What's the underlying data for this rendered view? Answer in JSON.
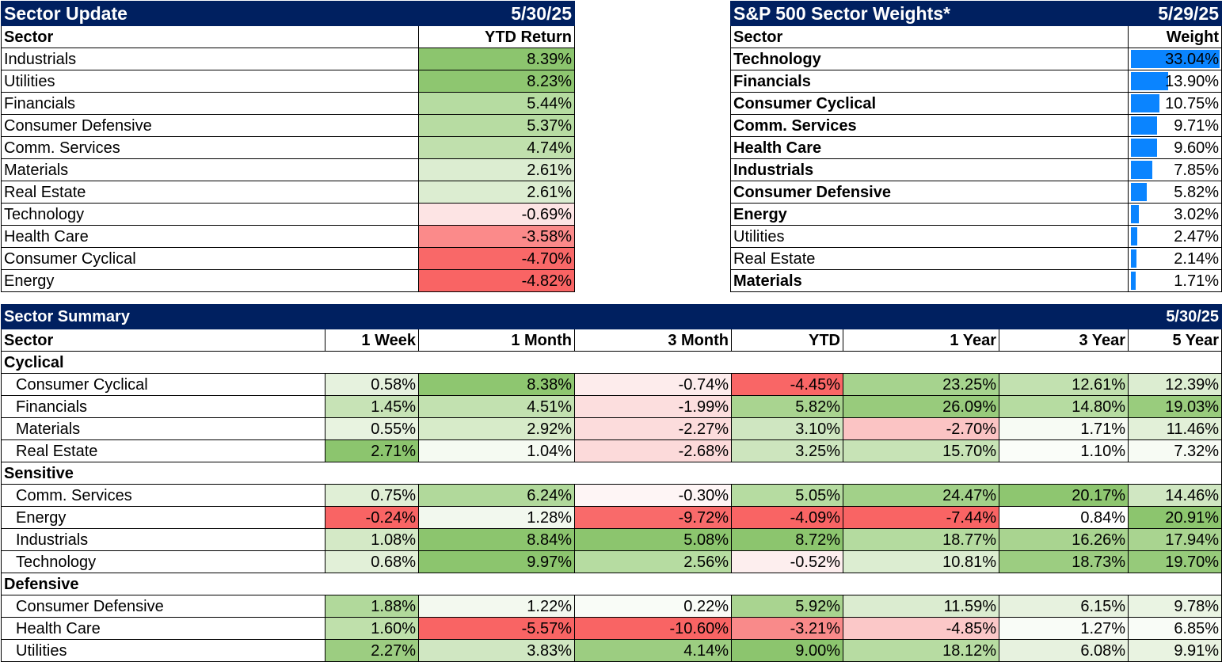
{
  "sector_update": {
    "title": "Sector Update",
    "date": "5/30/25",
    "col_sector": "Sector",
    "col_return": "YTD Return",
    "rows": [
      {
        "sector": "Industrials",
        "value": "8.39%",
        "color": "#8cc56e"
      },
      {
        "sector": "Utilities",
        "value": "8.23%",
        "color": "#8ec670"
      },
      {
        "sector": "Financials",
        "value": "5.44%",
        "color": "#b6dca1"
      },
      {
        "sector": "Consumer Defensive",
        "value": "5.37%",
        "color": "#b7dca2"
      },
      {
        "sector": "Comm. Services",
        "value": "4.74%",
        "color": "#c0e0ad"
      },
      {
        "sector": "Materials",
        "value": "2.61%",
        "color": "#dcedd1"
      },
      {
        "sector": "Real Estate",
        "value": "2.61%",
        "color": "#dcedd1"
      },
      {
        "sector": "Technology",
        "value": "-0.69%",
        "color": "#fde4e4"
      },
      {
        "sector": "Health Care",
        "value": "-3.58%",
        "color": "#fb8a8a"
      },
      {
        "sector": "Consumer Cyclical",
        "value": "-4.70%",
        "color": "#f96868"
      },
      {
        "sector": "Energy",
        "value": "-4.82%",
        "color": "#f96464"
      }
    ]
  },
  "weights": {
    "title": "S&P 500 Sector Weights*",
    "date": "5/29/25",
    "col_sector": "Sector",
    "col_weight": "Weight",
    "rows": [
      {
        "sector": "Technology",
        "value": "33.04%",
        "weight": 33.04,
        "bold": true
      },
      {
        "sector": "Financials",
        "value": "13.90%",
        "weight": 13.9,
        "bold": true
      },
      {
        "sector": "Consumer Cyclical",
        "value": "10.75%",
        "weight": 10.75,
        "bold": true
      },
      {
        "sector": "Comm. Services",
        "value": "9.71%",
        "weight": 9.71,
        "bold": true
      },
      {
        "sector": "Health Care",
        "value": "9.60%",
        "weight": 9.6,
        "bold": true
      },
      {
        "sector": "Industrials",
        "value": "7.85%",
        "weight": 7.85,
        "bold": true
      },
      {
        "sector": "Consumer Defensive",
        "value": "5.82%",
        "weight": 5.82,
        "bold": true
      },
      {
        "sector": "Energy",
        "value": "3.02%",
        "weight": 3.02,
        "bold": true
      },
      {
        "sector": "Utilities",
        "value": "2.47%",
        "weight": 2.47,
        "bold": false
      },
      {
        "sector": "Real Estate",
        "value": "2.14%",
        "weight": 2.14,
        "bold": false
      },
      {
        "sector": "Materials",
        "value": "1.71%",
        "weight": 1.71,
        "bold": true
      }
    ],
    "bar_color": "#0a84ff"
  },
  "summary": {
    "title": "Sector Summary",
    "date": "5/30/25",
    "columns": [
      "Sector",
      "1 Week",
      "1 Month",
      "3 Month",
      "YTD",
      "1 Year",
      "3 Year",
      "5 Year"
    ],
    "groups": [
      {
        "name": "Cyclical",
        "rows": [
          {
            "sector": "Consumer Cyclical",
            "cells": [
              {
                "v": "0.58%",
                "c": "#e6f2de"
              },
              {
                "v": "8.38%",
                "c": "#8ec670"
              },
              {
                "v": "-0.74%",
                "c": "#fdecec"
              },
              {
                "v": "-4.45%",
                "c": "#f96666"
              },
              {
                "v": "23.25%",
                "c": "#a6d38e"
              },
              {
                "v": "12.61%",
                "c": "#c2e1b0"
              },
              {
                "v": "12.39%",
                "c": "#dcedd1"
              }
            ]
          },
          {
            "sector": "Financials",
            "cells": [
              {
                "v": "1.45%",
                "c": "#c7e3b6"
              },
              {
                "v": "4.51%",
                "c": "#c2e1b0"
              },
              {
                "v": "-1.99%",
                "c": "#fcdede"
              },
              {
                "v": "5.82%",
                "c": "#a9d490"
              },
              {
                "v": "26.09%",
                "c": "#98cb7c"
              },
              {
                "v": "14.80%",
                "c": "#b6dca1"
              },
              {
                "v": "19.03%",
                "c": "#99cc7d"
              }
            ]
          },
          {
            "sector": "Materials",
            "cells": [
              {
                "v": "0.55%",
                "c": "#e8f3e0"
              },
              {
                "v": "2.92%",
                "c": "#d7ebc9"
              },
              {
                "v": "-2.27%",
                "c": "#fcdcdc"
              },
              {
                "v": "3.10%",
                "c": "#cfe6c1"
              },
              {
                "v": "-2.70%",
                "c": "#fbc4c4"
              },
              {
                "v": "1.71%",
                "c": "#f7fbf4"
              },
              {
                "v": "11.46%",
                "c": "#e2f0d8"
              }
            ]
          },
          {
            "sector": "Real Estate",
            "cells": [
              {
                "v": "2.71%",
                "c": "#8cc56e"
              },
              {
                "v": "1.04%",
                "c": "#f5faf2"
              },
              {
                "v": "-2.68%",
                "c": "#fcdada"
              },
              {
                "v": "3.25%",
                "c": "#cde5be"
              },
              {
                "v": "15.70%",
                "c": "#c7e3b6"
              },
              {
                "v": "1.10%",
                "c": "#fafdf9"
              },
              {
                "v": "7.32%",
                "c": "#f7fbf4"
              }
            ]
          }
        ]
      },
      {
        "name": "Sensitive",
        "rows": [
          {
            "sector": "Comm. Services",
            "cells": [
              {
                "v": "0.75%",
                "c": "#e0efd6"
              },
              {
                "v": "6.24%",
                "c": "#b1d99b"
              },
              {
                "v": "-0.30%",
                "c": "#fef5f5"
              },
              {
                "v": "5.05%",
                "c": "#b6dca1"
              },
              {
                "v": "24.47%",
                "c": "#a2d189"
              },
              {
                "v": "20.17%",
                "c": "#8ec670"
              },
              {
                "v": "14.46%",
                "c": "#d0e7c2"
              }
            ]
          },
          {
            "sector": "Energy",
            "cells": [
              {
                "v": "-0.24%",
                "c": "#f96464"
              },
              {
                "v": "1.28%",
                "c": "#f2f8ee"
              },
              {
                "v": "-9.72%",
                "c": "#f96a6a"
              },
              {
                "v": "-4.09%",
                "c": "#f96464"
              },
              {
                "v": "-7.44%",
                "c": "#f96464"
              },
              {
                "v": "0.84%",
                "c": "#ffffff"
              },
              {
                "v": "20.91%",
                "c": "#8cc56e"
              }
            ]
          },
          {
            "sector": "Industrials",
            "cells": [
              {
                "v": "1.08%",
                "c": "#d4e9c6"
              },
              {
                "v": "8.84%",
                "c": "#8cc56e"
              },
              {
                "v": "5.08%",
                "c": "#8cc56e"
              },
              {
                "v": "8.72%",
                "c": "#8cc56e"
              },
              {
                "v": "18.77%",
                "c": "#b4db9f"
              },
              {
                "v": "16.26%",
                "c": "#a9d490"
              },
              {
                "v": "17.94%",
                "c": "#a9d490"
              }
            ]
          },
          {
            "sector": "Technology",
            "cells": [
              {
                "v": "0.68%",
                "c": "#e2f0d8"
              },
              {
                "v": "9.97%",
                "c": "#8cc56e"
              },
              {
                "v": "2.56%",
                "c": "#b6dca1"
              },
              {
                "v": "-0.52%",
                "c": "#fdeeee"
              },
              {
                "v": "10.81%",
                "c": "#dcedd1"
              },
              {
                "v": "18.73%",
                "c": "#9ccd81"
              },
              {
                "v": "19.70%",
                "c": "#96ca7a"
              }
            ]
          }
        ]
      },
      {
        "name": "Defensive",
        "rows": [
          {
            "sector": "Consumer Defensive",
            "cells": [
              {
                "v": "1.88%",
                "c": "#b1d99b"
              },
              {
                "v": "1.22%",
                "c": "#f3f9ef"
              },
              {
                "v": "0.22%",
                "c": "#f9fcf7"
              },
              {
                "v": "5.92%",
                "c": "#a9d490"
              },
              {
                "v": "11.59%",
                "c": "#dbecd0"
              },
              {
                "v": "6.15%",
                "c": "#e7f2df"
              },
              {
                "v": "9.78%",
                "c": "#eaf4e3"
              }
            ]
          },
          {
            "sector": "Health Care",
            "cells": [
              {
                "v": "1.60%",
                "c": "#bfe0ab"
              },
              {
                "v": "-5.57%",
                "c": "#f96464"
              },
              {
                "v": "-10.60%",
                "c": "#f96464"
              },
              {
                "v": "-3.21%",
                "c": "#f98a8a"
              },
              {
                "v": "-4.85%",
                "c": "#fbc8c8"
              },
              {
                "v": "1.27%",
                "c": "#f9fcf7"
              },
              {
                "v": "6.85%",
                "c": "#f9fcf7"
              }
            ]
          },
          {
            "sector": "Utilities",
            "cells": [
              {
                "v": "2.27%",
                "c": "#9ccd81"
              },
              {
                "v": "3.83%",
                "c": "#d0e7c2"
              },
              {
                "v": "4.14%",
                "c": "#9ccd81"
              },
              {
                "v": "9.00%",
                "c": "#8cc56e"
              },
              {
                "v": "18.12%",
                "c": "#b7dca2"
              },
              {
                "v": "6.08%",
                "c": "#e7f2df"
              },
              {
                "v": "9.91%",
                "c": "#e9f3e1"
              }
            ]
          }
        ]
      }
    ]
  }
}
